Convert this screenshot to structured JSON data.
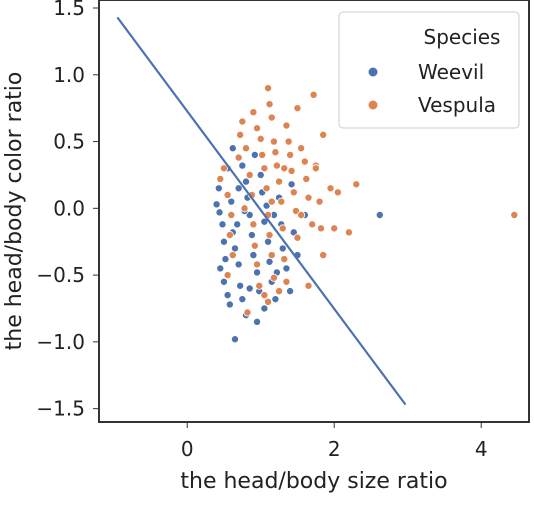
{
  "chart_data": {
    "type": "scatter",
    "xlabel": "the  head/body size ratio",
    "ylabel": "the  head/body color ratio",
    "xlim": [
      -1.2,
      4.65
    ],
    "ylim": [
      -1.6,
      1.56
    ],
    "x_ticks": [
      0,
      2,
      4
    ],
    "y_ticks": [
      1.5,
      1.0,
      0.5,
      0.0,
      -0.5,
      -1.0,
      -1.5
    ],
    "y_tick_labels": [
      "1.5",
      "1.0",
      "0.5",
      "0.0",
      "−0.5",
      "−1.0",
      "−1.5"
    ],
    "grid": false,
    "legend": {
      "title": "Species",
      "placement": "top-right",
      "entries": [
        {
          "name": "Weevil",
          "color": "#4C72B0"
        },
        {
          "name": "Vespula",
          "color": "#DD8452"
        }
      ]
    },
    "series": [
      {
        "name": "Weevil",
        "color": "#4C72B0",
        "points": [
          [
            0.43,
            0.15
          ],
          [
            0.4,
            0.03
          ],
          [
            0.44,
            -0.03
          ],
          [
            0.48,
            -0.12
          ],
          [
            0.5,
            -0.25
          ],
          [
            0.45,
            -0.45
          ],
          [
            0.5,
            -0.55
          ],
          [
            0.55,
            -0.65
          ],
          [
            0.58,
            -0.72
          ],
          [
            0.6,
            0.05
          ],
          [
            0.62,
            -0.18
          ],
          [
            0.65,
            -0.3
          ],
          [
            0.7,
            -0.42
          ],
          [
            0.72,
            -0.58
          ],
          [
            0.75,
            -0.68
          ],
          [
            0.65,
            -0.98
          ],
          [
            0.75,
            0.32
          ],
          [
            0.8,
            0.2
          ],
          [
            0.82,
            0.08
          ],
          [
            0.85,
            -0.05
          ],
          [
            0.88,
            -0.2
          ],
          [
            0.9,
            -0.35
          ],
          [
            0.8,
            -0.8
          ],
          [
            0.95,
            -0.48
          ],
          [
            0.98,
            -0.62
          ],
          [
            1.0,
            0.25
          ],
          [
            1.02,
            0.12
          ],
          [
            1.05,
            -0.1
          ],
          [
            1.1,
            -0.25
          ],
          [
            1.12,
            -0.4
          ],
          [
            1.15,
            -0.55
          ],
          [
            1.05,
            -0.75
          ],
          [
            1.2,
            -0.68
          ],
          [
            1.25,
            0.08
          ],
          [
            1.28,
            -0.12
          ],
          [
            1.3,
            -0.3
          ],
          [
            1.35,
            -0.45
          ],
          [
            1.4,
            -0.62
          ],
          [
            1.45,
            -0.18
          ],
          [
            1.5,
            -0.35
          ],
          [
            1.42,
            0.18
          ],
          [
            0.55,
            0.3
          ],
          [
            0.62,
            0.45
          ],
          [
            0.7,
            0.15
          ],
          [
            0.92,
            0.4
          ],
          [
            0.68,
            -0.12
          ],
          [
            0.78,
            -0.02
          ],
          [
            1.18,
            -0.05
          ],
          [
            0.95,
            -0.85
          ],
          [
            1.6,
            -0.05
          ],
          [
            2.62,
            -0.05
          ],
          [
            0.52,
            -0.38
          ],
          [
            0.85,
            -0.6
          ],
          [
            1.08,
            0.02
          ],
          [
            1.22,
            -0.48
          ]
        ]
      },
      {
        "name": "Vespula",
        "color": "#DD8452",
        "points": [
          [
            0.45,
            0.22
          ],
          [
            0.5,
            0.3
          ],
          [
            0.55,
            0.1
          ],
          [
            0.6,
            -0.05
          ],
          [
            0.58,
            -0.2
          ],
          [
            0.55,
            -0.5
          ],
          [
            0.62,
            -0.35
          ],
          [
            0.7,
            0.38
          ],
          [
            0.72,
            0.55
          ],
          [
            0.75,
            0.65
          ],
          [
            0.8,
            0.45
          ],
          [
            0.85,
            0.25
          ],
          [
            0.88,
            0.1
          ],
          [
            0.9,
            -0.12
          ],
          [
            0.92,
            -0.28
          ],
          [
            0.95,
            -0.42
          ],
          [
            0.98,
            -0.58
          ],
          [
            0.9,
            0.72
          ],
          [
            0.95,
            0.6
          ],
          [
            1.0,
            0.52
          ],
          [
            1.02,
            0.4
          ],
          [
            1.05,
            0.3
          ],
          [
            1.08,
            0.15
          ],
          [
            1.1,
            -0.05
          ],
          [
            1.12,
            -0.2
          ],
          [
            1.15,
            -0.35
          ],
          [
            1.18,
            -0.52
          ],
          [
            1.1,
            0.9
          ],
          [
            1.12,
            0.78
          ],
          [
            1.15,
            0.68
          ],
          [
            1.18,
            0.5
          ],
          [
            1.2,
            0.42
          ],
          [
            1.22,
            0.32
          ],
          [
            1.25,
            0.2
          ],
          [
            1.28,
            0.05
          ],
          [
            1.3,
            -0.15
          ],
          [
            1.32,
            -0.38
          ],
          [
            1.35,
            -0.55
          ],
          [
            1.35,
            0.62
          ],
          [
            1.38,
            0.5
          ],
          [
            1.4,
            0.4
          ],
          [
            1.42,
            0.28
          ],
          [
            1.45,
            0.12
          ],
          [
            1.48,
            -0.02
          ],
          [
            1.5,
            -0.22
          ],
          [
            1.5,
            0.75
          ],
          [
            1.55,
            0.45
          ],
          [
            1.6,
            0.35
          ],
          [
            1.62,
            0.22
          ],
          [
            1.65,
            0.08
          ],
          [
            1.7,
            -0.12
          ],
          [
            1.75,
            0.32
          ],
          [
            1.8,
            0.05
          ],
          [
            1.82,
            -0.15
          ],
          [
            1.85,
            -0.35
          ],
          [
            1.85,
            0.55
          ],
          [
            1.65,
            -0.58
          ],
          [
            1.72,
            0.85
          ],
          [
            1.95,
            0.15
          ],
          [
            2.0,
            -0.15
          ],
          [
            2.05,
            0.12
          ],
          [
            2.2,
            -0.18
          ],
          [
            2.3,
            0.18
          ],
          [
            1.75,
            0.3
          ],
          [
            1.1,
            -0.7
          ],
          [
            1.25,
            -0.62
          ],
          [
            0.82,
            -0.78
          ],
          [
            1.05,
            -0.65
          ],
          [
            1.55,
            -0.05
          ],
          [
            1.15,
            0.05
          ],
          [
            1.32,
            0.3
          ],
          [
            0.78,
            0.0
          ],
          [
            4.45,
            -0.05
          ]
        ]
      }
    ],
    "fit_line": {
      "color": "#4C72B0",
      "points": [
        [
          -0.95,
          1.43
        ],
        [
          2.97,
          -1.47
        ]
      ]
    }
  }
}
